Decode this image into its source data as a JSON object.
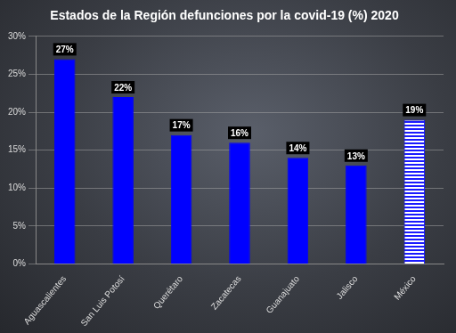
{
  "chart_data": {
    "type": "bar",
    "title": "Estados de la Región defunciones por la covid-19 (%) 2020",
    "categories": [
      "Aguascalientes",
      "San Luis Potosí",
      "Querétaro",
      "Zacatecas",
      "Guanajuato",
      "Jalisco",
      "México"
    ],
    "values": [
      27,
      22,
      17,
      16,
      14,
      13,
      19
    ],
    "value_labels": [
      "27%",
      "22%",
      "17%",
      "16%",
      "14%",
      "13%",
      "19%"
    ],
    "colors": [
      "#0000ff",
      "#0000ff",
      "#0000ff",
      "#0000ff",
      "#0000ff",
      "#0000ff",
      "#1a1aff"
    ],
    "ylim": [
      0,
      30
    ],
    "yticks": [
      {
        "value": 0,
        "label": "0%"
      },
      {
        "value": 5,
        "label": "5%"
      },
      {
        "value": 10,
        "label": "10%"
      },
      {
        "value": 15,
        "label": "15%"
      },
      {
        "value": 20,
        "label": "20%"
      },
      {
        "value": 25,
        "label": "25%"
      },
      {
        "value": 30,
        "label": "30%"
      }
    ],
    "grid": true,
    "data_labels": true
  }
}
